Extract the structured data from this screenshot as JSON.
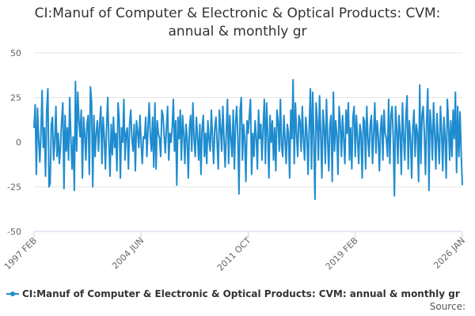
{
  "title_line1": "CI:Manuf of Computer & Electronic & Optical Products: CVM:",
  "title_line2": "annual & monthly gr",
  "legend_label": "CI:Manuf of Computer & Electronic & Optical Products: CVM: annual & monthly gr",
  "source_label": "Source:",
  "colors": {
    "series": "#1f8ccf",
    "grid": "#e6e6e6",
    "axis": "#ccd6eb"
  },
  "chart_data": {
    "type": "line",
    "title": "CI:Manuf of Computer & Electronic & Optical Products: CVM: annual & monthly gr",
    "xlabel": "",
    "ylabel": "",
    "ylim": [
      -50,
      50
    ],
    "yticks": [
      50,
      25,
      0,
      -25,
      -50
    ],
    "xticks": [
      "1997 FEB",
      "2004 JUN",
      "2011 OCT",
      "2019 FEB",
      "2026 JAN"
    ],
    "xstart": "1997-02",
    "xend": "2026-01",
    "grid": "horizontal",
    "legend": "bottom",
    "series": [
      {
        "name": "CI:Manuf of Computer & Electronic & Optical Products: CVM: annual & monthly gr",
        "frequency": "approx. monthly",
        "values": [
          8,
          21,
          -18,
          19,
          2,
          -11,
          5,
          29,
          -3,
          8,
          -19,
          18,
          30,
          -25,
          -23,
          10,
          14,
          -10,
          0,
          20,
          -8,
          5,
          -12,
          -2,
          12,
          22,
          -26,
          15,
          -5,
          8,
          -10,
          25,
          2,
          -15,
          3,
          -27,
          34,
          -5,
          28,
          12,
          3,
          18,
          -20,
          14,
          5,
          -10,
          10,
          15,
          -18,
          31,
          22,
          -25,
          15,
          -8,
          5,
          12,
          -5,
          10,
          20,
          -12,
          14,
          3,
          -15,
          8,
          25,
          0,
          -19,
          10,
          -7,
          14,
          -3,
          5,
          -16,
          22,
          12,
          -20,
          8,
          0,
          24,
          -10,
          5,
          8,
          -15,
          10,
          18,
          2,
          -5,
          10,
          -16,
          12,
          6,
          -3,
          15,
          0,
          -12,
          3,
          2,
          14,
          -8,
          8,
          22,
          3,
          -5,
          14,
          -14,
          22,
          -15,
          12,
          5,
          2,
          -8,
          18,
          15,
          4,
          -6,
          8,
          20,
          -10,
          5,
          0,
          8,
          24,
          -5,
          12,
          -24,
          14,
          2,
          18,
          -10,
          15,
          5,
          -12,
          10,
          2,
          -20,
          8,
          15,
          -5,
          22,
          2,
          -8,
          14,
          3,
          -10,
          10,
          -18,
          8,
          15,
          -8,
          5,
          -12,
          12,
          2,
          -5,
          18,
          3,
          -12,
          8,
          14,
          0,
          -15,
          18,
          8,
          -5,
          20,
          2,
          -14,
          6,
          24,
          -12,
          15,
          2,
          -8,
          18,
          -15,
          10,
          20,
          3,
          -29,
          18,
          25,
          -10,
          10,
          2,
          -22,
          12,
          5,
          15,
          24,
          -18,
          5,
          -8,
          12,
          3,
          -15,
          18,
          2,
          10,
          -10,
          8,
          24,
          -12,
          22,
          5,
          -20,
          15,
          0,
          12,
          -10,
          8,
          -16,
          18,
          12,
          -5,
          24,
          -2,
          -8,
          15,
          2,
          -12,
          10,
          5,
          -20,
          18,
          2,
          35,
          -12,
          22,
          5,
          -8,
          15,
          12,
          -5,
          20,
          2,
          -10,
          14,
          5,
          -18,
          8,
          30,
          -15,
          28,
          2,
          -32,
          22,
          12,
          -10,
          26,
          5,
          -20,
          18,
          8,
          -12,
          24,
          2,
          -16,
          10,
          15,
          -22,
          28,
          -5,
          12,
          4,
          -18,
          20,
          10,
          -8,
          15,
          2,
          -12,
          18,
          5,
          22,
          -10,
          8,
          -15,
          14,
          20,
          -8,
          15,
          2,
          -12,
          10,
          5,
          -20,
          14,
          12,
          -15,
          20,
          2,
          -8,
          10,
          15,
          -12,
          5,
          22,
          -6,
          12,
          3,
          -16,
          8,
          15,
          -10,
          18,
          5,
          2,
          -8,
          24,
          -12,
          15,
          20,
          2,
          -30,
          20,
          8,
          -12,
          15,
          5,
          -18,
          22,
          3,
          -10,
          14,
          26,
          -15,
          12,
          2,
          -20,
          8,
          18,
          -8,
          10,
          5,
          -22,
          32,
          -12,
          15,
          20,
          5,
          -18,
          12,
          30,
          -27,
          18,
          8,
          -10,
          22,
          5,
          -15,
          16,
          2,
          -12,
          20,
          6,
          -16,
          14,
          3,
          -20,
          24,
          10,
          -10,
          12,
          -8,
          18,
          2,
          28,
          -17,
          20,
          -8,
          17,
          -6,
          -24
        ]
      }
    ]
  }
}
